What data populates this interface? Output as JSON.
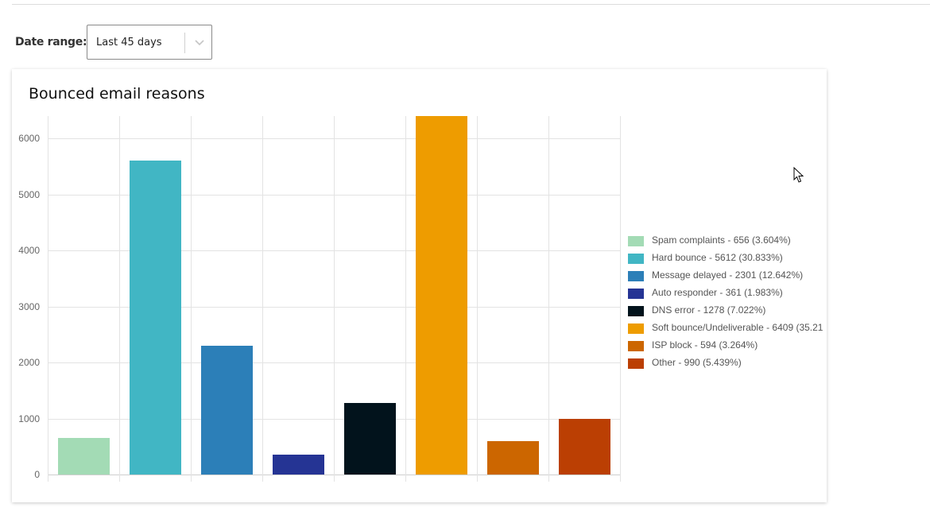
{
  "filter": {
    "label": "Date range:",
    "selected": "Last 45 days"
  },
  "card": {
    "title": "Bounced email reasons"
  },
  "chart_data": {
    "type": "bar",
    "title": "Bounced email reasons",
    "xlabel": "",
    "ylabel": "",
    "ylim": [
      0,
      6400
    ],
    "yticks": [
      0,
      1000,
      2000,
      3000,
      4000,
      5000,
      6000
    ],
    "grid": true,
    "legend_position": "right",
    "categories": [
      "Spam complaints",
      "Hard bounce",
      "Message delayed",
      "Auto responder",
      "DNS error",
      "Soft bounce/Undeliverable",
      "ISP block",
      "Other"
    ],
    "values": [
      656,
      5612,
      2301,
      361,
      1278,
      6409,
      594,
      990
    ],
    "percentages": [
      "3.604%",
      "30.833%",
      "12.642%",
      "1.983%",
      "7.022%",
      "35.21",
      "3.264%",
      "5.439%"
    ],
    "colors": [
      "#a3dbb5",
      "#41b6c4",
      "#2c7fb8",
      "#253494",
      "#02131c",
      "#ee9c00",
      "#cc6600",
      "#bb3f03"
    ],
    "legend": [
      "Spam complaints - 656 (3.604%)",
      "Hard bounce - 5612 (30.833%)",
      "Message delayed - 2301 (12.642%)",
      "Auto responder - 361 (1.983%)",
      "DNS error - 1278 (7.022%)",
      "Soft bounce/Undeliverable - 6409 (35.21",
      "ISP block - 594 (3.264%)",
      "Other - 990 (5.439%)"
    ]
  }
}
